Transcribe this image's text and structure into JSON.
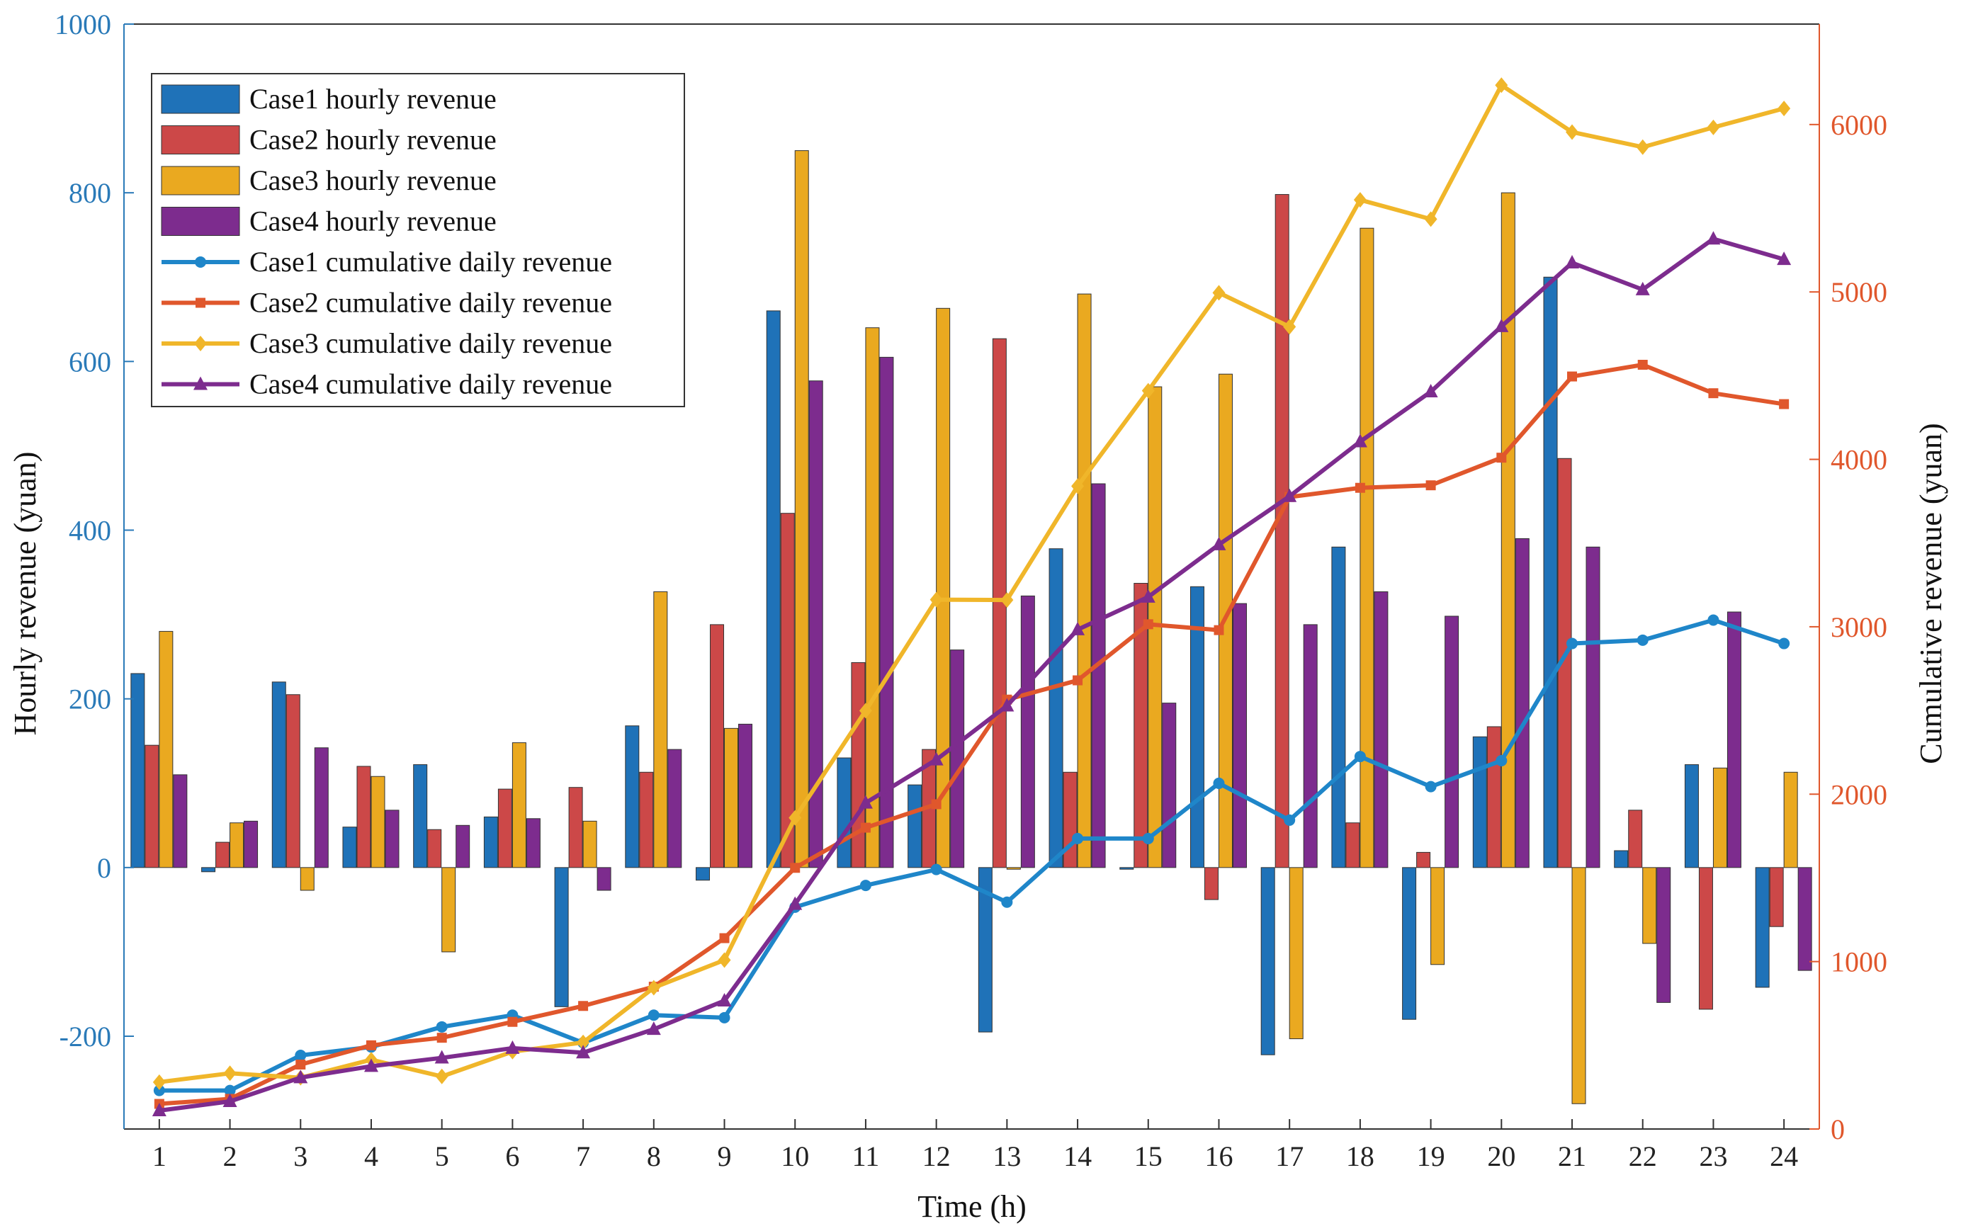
{
  "chart_data": {
    "type": "bar+line (dual y-axis)",
    "xlabel": "Time (h)",
    "ylabel_left": "Hourly revenue (yuan)",
    "ylabel_right": "Cumulative revenue (yuan)",
    "ylim_left": [
      -310,
      1000
    ],
    "ylim_right": [
      0,
      6600
    ],
    "x": [
      1,
      2,
      3,
      4,
      5,
      6,
      7,
      8,
      9,
      10,
      11,
      12,
      13,
      14,
      15,
      16,
      17,
      18,
      19,
      20,
      21,
      22,
      23,
      24
    ],
    "left_ticks": [
      -200,
      0,
      200,
      400,
      600,
      800,
      1000
    ],
    "right_ticks": [
      0,
      1000,
      2000,
      3000,
      4000,
      5000,
      6000
    ],
    "colors": {
      "case1": "#1f72b8",
      "case2": "#cc4848",
      "case3": "#eaa920",
      "case4": "#7d2c8e",
      "case1_line": "#1f86c9",
      "case2_line": "#e0572c",
      "case3_line": "#f0b62a",
      "case4_line": "#7d2c8e",
      "axis_left": "#2a7ab8",
      "axis_right": "#e0572c"
    },
    "bar_series": [
      {
        "name": "Case1 hourly revenue",
        "values": [
          230,
          -5,
          220,
          48,
          122,
          60,
          -165,
          168,
          -15,
          660,
          130,
          98,
          -195,
          378,
          -2,
          333,
          -222,
          380,
          -180,
          155,
          700,
          20,
          122,
          -142
        ]
      },
      {
        "name": "Case2 hourly revenue",
        "values": [
          145,
          30,
          205,
          120,
          45,
          93,
          95,
          113,
          288,
          420,
          243,
          140,
          627,
          113,
          337,
          -38,
          798,
          53,
          18,
          167,
          485,
          68,
          -168,
          -70
        ]
      },
      {
        "name": "Case3 hourly revenue",
        "values": [
          280,
          53,
          -27,
          108,
          -100,
          148,
          55,
          327,
          165,
          850,
          640,
          663,
          -2,
          680,
          570,
          585,
          -203,
          758,
          -115,
          800,
          -280,
          -90,
          118,
          113
        ]
      },
      {
        "name": "Case4 hourly revenue",
        "values": [
          110,
          55,
          142,
          68,
          50,
          58,
          -27,
          140,
          170,
          577,
          605,
          258,
          322,
          455,
          195,
          313,
          288,
          327,
          298,
          390,
          380,
          -160,
          303,
          -122
        ]
      }
    ],
    "line_series": [
      {
        "name": "Case1 cumulative daily revenue",
        "marker": "circle",
        "values": [
          230,
          230,
          440,
          490,
          610,
          680,
          515,
          680,
          665,
          1325,
          1455,
          1550,
          1355,
          1735,
          1735,
          2065,
          1845,
          2225,
          2045,
          2200,
          2900,
          2920,
          3040,
          2900
        ]
      },
      {
        "name": "Case2 cumulative daily revenue",
        "marker": "square",
        "values": [
          150,
          180,
          385,
          500,
          545,
          640,
          735,
          850,
          1140,
          1560,
          1800,
          1940,
          2565,
          2680,
          3015,
          2980,
          3775,
          3830,
          3845,
          4010,
          4495,
          4565,
          4395,
          4330
        ]
      },
      {
        "name": "Case3 cumulative daily revenue",
        "marker": "diamond",
        "values": [
          280,
          333,
          306,
          414,
          314,
          462,
          517,
          844,
          1009,
          1859,
          2499,
          3162,
          3160,
          3840,
          4410,
          4995,
          4792,
          5550,
          5435,
          6235,
          5955,
          5865,
          5983,
          6096
        ]
      },
      {
        "name": "Case4 cumulative daily revenue",
        "marker": "triangle",
        "values": [
          110,
          165,
          307,
          375,
          425,
          483,
          456,
          596,
          766,
          1343,
          1948,
          2206,
          2528,
          2983,
          3178,
          3491,
          3779,
          4106,
          4404,
          4794,
          5174,
          5014,
          5317,
          5195
        ]
      }
    ]
  }
}
